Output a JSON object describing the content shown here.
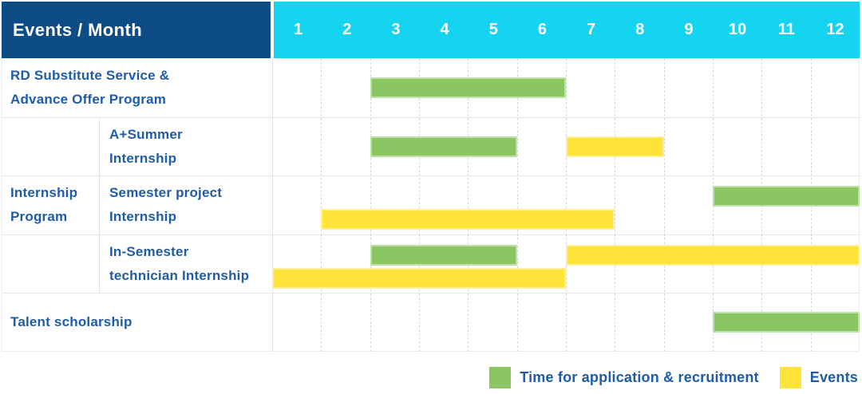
{
  "header": {
    "corner_label": "Events / Month",
    "months": [
      "1",
      "2",
      "3",
      "4",
      "5",
      "6",
      "7",
      "8",
      "9",
      "10",
      "11",
      "12"
    ]
  },
  "group_column": {
    "label": "Internship\nProgram"
  },
  "rows": [
    {
      "label": "RD Substitute Service &\nAdvance Offer Program",
      "indent": false,
      "bars": [
        {
          "type": "application",
          "start_month": 3,
          "end_month": 6,
          "lane": "center"
        }
      ]
    },
    {
      "label": "A+Summer\nInternship",
      "indent": true,
      "bars": [
        {
          "type": "application",
          "start_month": 3,
          "end_month": 5,
          "lane": "center"
        },
        {
          "type": "event",
          "start_month": 7,
          "end_month": 8,
          "lane": "center"
        }
      ]
    },
    {
      "label": "Semester project\nInternship",
      "indent": true,
      "bars": [
        {
          "type": "application",
          "start_month": 10,
          "end_month": 12,
          "lane": "upper"
        },
        {
          "type": "event",
          "start_month": 2,
          "end_month": 7,
          "lane": "lower"
        }
      ]
    },
    {
      "label": "In-Semester\ntechnician Internship",
      "indent": true,
      "bars": [
        {
          "type": "application",
          "start_month": 3,
          "end_month": 5,
          "lane": "upper"
        },
        {
          "type": "event",
          "start_month": 7,
          "end_month": 12,
          "lane": "upper"
        },
        {
          "type": "event",
          "start_month": 1,
          "end_month": 6,
          "lane": "lower"
        }
      ]
    },
    {
      "label": "Talent scholarship",
      "indent": false,
      "bars": [
        {
          "type": "application",
          "start_month": 10,
          "end_month": 12,
          "lane": "center"
        }
      ]
    }
  ],
  "legend": {
    "items": [
      {
        "type": "application",
        "label": "Time for application & recruitment"
      },
      {
        "type": "event",
        "label": "Events"
      }
    ]
  },
  "colors": {
    "header_bg": "#0D4C87",
    "months_bg": "#15D4EF",
    "application": "#8CC663",
    "event": "#FFE338",
    "label_text": "#1E5CA8"
  },
  "chart_data": {
    "type": "table",
    "subtype": "gantt-timeline",
    "title": "Events / Month",
    "x": [
      "1",
      "2",
      "3",
      "4",
      "5",
      "6",
      "7",
      "8",
      "9",
      "10",
      "11",
      "12"
    ],
    "xlabel": "Month",
    "legend_position": "bottom-right",
    "groups": [
      {
        "label": "Internship Program",
        "rows": [
          "A+Summer Internship",
          "Semester project Internship",
          "In-Semester technician Internship"
        ]
      }
    ],
    "series": [
      {
        "name": "Time for application & recruitment",
        "color": "#8CC663",
        "rows": [
          {
            "label": "RD Substitute Service & Advance Offer Program",
            "month_ranges": [
              [
                3,
                6
              ]
            ]
          },
          {
            "label": "A+Summer Internship",
            "month_ranges": [
              [
                3,
                5
              ]
            ]
          },
          {
            "label": "Semester project Internship",
            "month_ranges": [
              [
                10,
                12
              ]
            ]
          },
          {
            "label": "In-Semester technician Internship",
            "month_ranges": [
              [
                3,
                5
              ]
            ]
          },
          {
            "label": "Talent scholarship",
            "month_ranges": [
              [
                10,
                12
              ]
            ]
          }
        ]
      },
      {
        "name": "Events",
        "color": "#FFE338",
        "rows": [
          {
            "label": "A+Summer Internship",
            "month_ranges": [
              [
                7,
                8
              ]
            ]
          },
          {
            "label": "Semester project Internship",
            "month_ranges": [
              [
                2,
                7
              ]
            ]
          },
          {
            "label": "In-Semester technician Internship",
            "month_ranges": [
              [
                1,
                6
              ],
              [
                7,
                12
              ]
            ]
          }
        ]
      }
    ]
  }
}
